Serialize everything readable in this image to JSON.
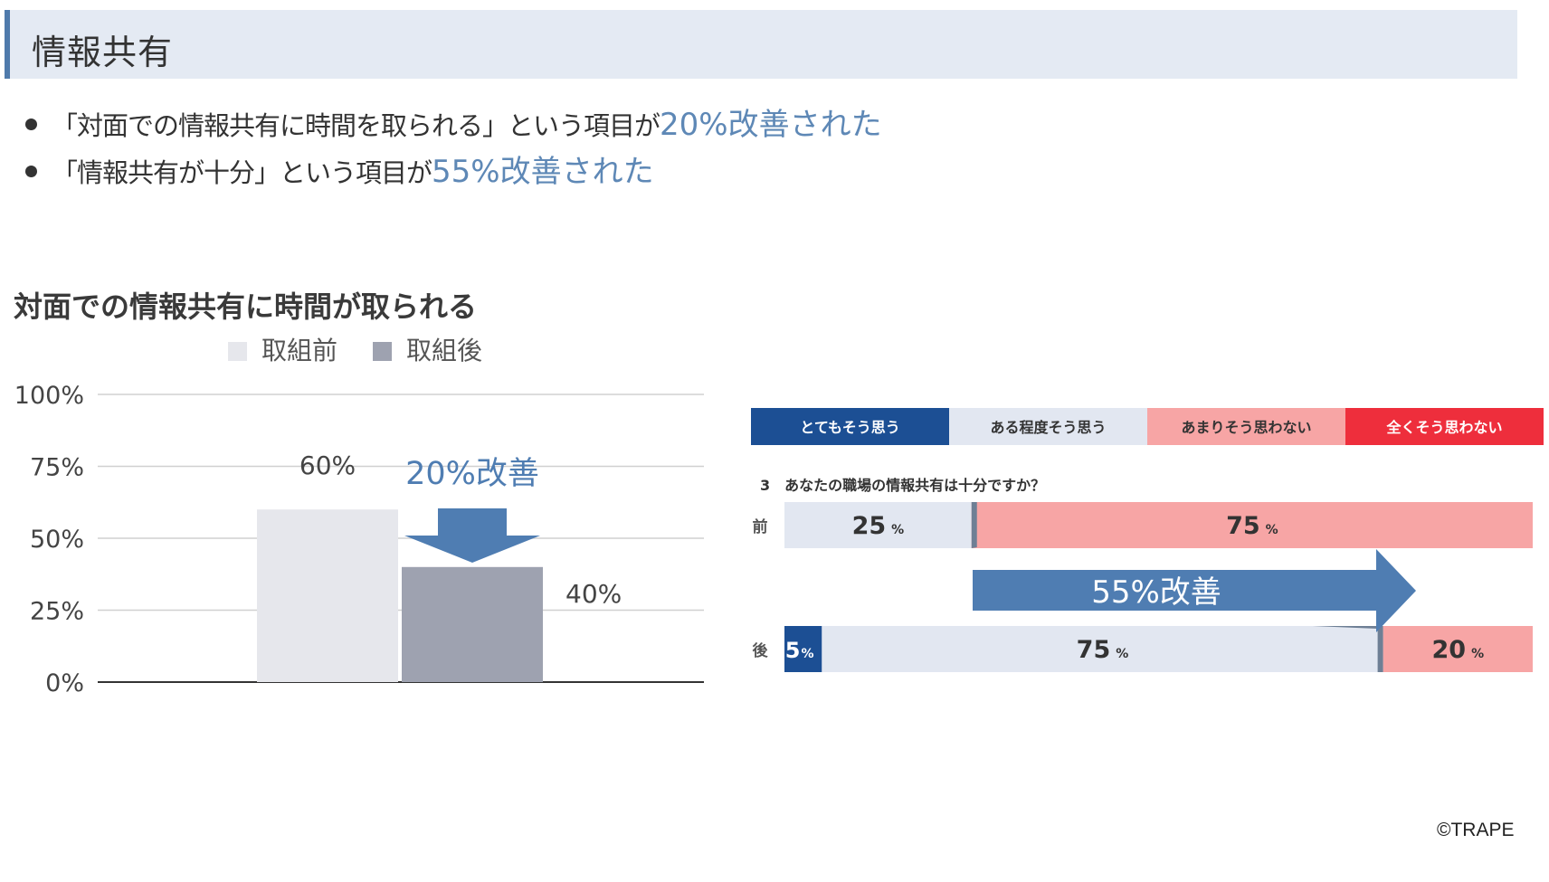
{
  "header": {
    "title": "情報共有"
  },
  "bullets": [
    {
      "prefix": "「対面での情報共有に時間を取られる」という項目が",
      "accent": "20%改善された"
    },
    {
      "prefix": "「情報共有が十分」という項目が",
      "accent": "55%改善された"
    }
  ],
  "colors": {
    "before_bar": "#e6e7ec",
    "after_bar": "#9ea2b0",
    "accent_blue": "#4f7db2",
    "very_much": "#1c4f94",
    "somewhat": "#e2e7f1",
    "not_much": "#f7a5a5",
    "not_at_all": "#ee2e3c"
  },
  "copyright": "©TRAPE",
  "chart_data": [
    {
      "type": "bar",
      "title": "対面での情報共有に時間が取られる",
      "legend_position": "top",
      "series": [
        {
          "name": "取組前",
          "values": [
            60
          ],
          "label": "60%"
        },
        {
          "name": "取組後",
          "values": [
            40
          ],
          "label": "40%"
        }
      ],
      "y_ticks": [
        "100%",
        "75%",
        "50%",
        "25%",
        "0%"
      ],
      "ylim": [
        0,
        100
      ],
      "grid": true,
      "annotation": "20%改善"
    },
    {
      "type": "bar",
      "stacked": "horizontal-100",
      "legend": [
        "とてもそう思う",
        "ある程度そう思う",
        "あまりそう思わない",
        "全くそう思わない"
      ],
      "question": "3　あなたの職場の情報共有は十分ですか？",
      "rows": [
        {
          "label": "前",
          "segments": [
            {
              "category": "とてもそう思う",
              "value": 0
            },
            {
              "category": "ある程度そう思う",
              "value": 25
            },
            {
              "category": "あまりそう思わない",
              "value": 75
            },
            {
              "category": "全くそう思わない",
              "value": 0
            }
          ]
        },
        {
          "label": "後",
          "segments": [
            {
              "category": "とてもそう思う",
              "value": 5
            },
            {
              "category": "ある程度そう思う",
              "value": 75
            },
            {
              "category": "あまりそう思わない",
              "value": 20
            },
            {
              "category": "全くそう思わない",
              "value": 0
            }
          ]
        }
      ],
      "unit": "%",
      "annotation": "55%改善"
    }
  ]
}
